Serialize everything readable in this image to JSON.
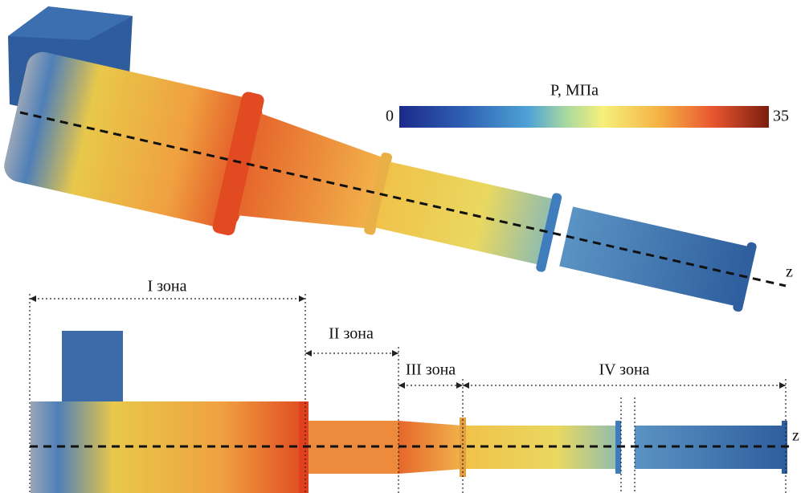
{
  "colorbar": {
    "title": "P, МПа",
    "min": 0,
    "max": 35
  },
  "top_view": {
    "axis_label": "z"
  },
  "side_view": {
    "axis_label": "z",
    "zones": [
      "I зона",
      "II зона",
      "III зона",
      "IV зона"
    ]
  }
}
